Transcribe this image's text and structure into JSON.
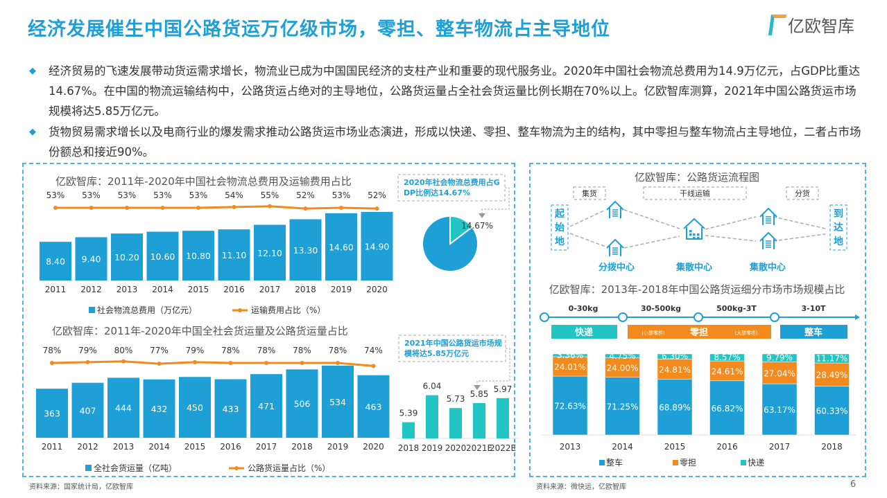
{
  "header": {
    "title": "经济发展催生中国公路货运万亿级市场，零担、整车物流占主导地位",
    "logo": "亿欧智库"
  },
  "bullets": [
    "经济贸易的飞速发展带动货运需求增长，物流业已成为中国国民经济的支柱产业和重要的现代服务业。2020年中国社会物流总费用为14.9万亿元，占GDP比重达14.67%。在中国的物流运输结构中，公路货运占绝对的主导地位，公路货运量占全社会货运量比例长期在70%以上。亿欧智库测算，2021年中国公路货运市场规模将达5.85万亿元。",
    "货物贸易需求增长以及电商行业的爆发需求推动公路货运市场业态演进，形成以快递、零担、整车物流为主的结构，其中零担与整车物流占主导地位，二者占市场份额总和接近90%。"
  ],
  "colors": {
    "blue": "#1e9fd6",
    "orange": "#f28a1e",
    "teal": "#22c4c4",
    "bar_blue": "#1e9fd6"
  },
  "chart_data": [
    {
      "type": "bar",
      "title": "亿欧智库：2011年-2020年中国社会物流总费用及运输费用占比",
      "categories": [
        "2011",
        "2012",
        "2013",
        "2014",
        "2015",
        "2016",
        "2017",
        "2018",
        "2019",
        "2020"
      ],
      "series": [
        {
          "name": "社会物流总费用（万亿元）",
          "type": "bar",
          "values": [
            8.4,
            9.4,
            10.2,
            10.6,
            10.8,
            11.1,
            12.1,
            13.3,
            14.6,
            14.9
          ],
          "labels": [
            "8.40",
            "9.40",
            "10.20",
            "10.60",
            "10.80",
            "11.10",
            "12.10",
            "13.30",
            "14.60",
            "14.90"
          ]
        },
        {
          "name": "运输费用占比（%）",
          "type": "line",
          "values": [
            53,
            53,
            53,
            53,
            53,
            54,
            55,
            52,
            53,
            52
          ],
          "labels": [
            "53%",
            "53%",
            "53%",
            "53%",
            "53%",
            "54%",
            "55%",
            "52%",
            "53%",
            "52%"
          ]
        }
      ],
      "legend": "bottom"
    },
    {
      "type": "pie",
      "callout": "2020年社会物流总费用占GDP比例达14.67%",
      "slices": [
        {
          "label": "14.67%",
          "value": 14.67
        },
        {
          "label": "",
          "value": 85.33
        }
      ]
    },
    {
      "type": "bar",
      "title": "亿欧智库：2011年-2020年中国全社会货运量及公路货运量占比",
      "categories": [
        "2011",
        "2012",
        "2013",
        "2014",
        "2015",
        "2016",
        "2017",
        "2018",
        "2019",
        "2020"
      ],
      "series": [
        {
          "name": "全社会货运量（亿吨）",
          "type": "bar",
          "values": [
            363,
            407,
            444,
            432,
            450,
            433,
            471,
            506,
            534,
            463
          ],
          "labels": [
            "363",
            "407",
            "444",
            "432",
            "450",
            "433",
            "471",
            "506",
            "534",
            "463"
          ]
        },
        {
          "name": "公路货运量占比（%）",
          "type": "line",
          "values": [
            78,
            79,
            80,
            77,
            79,
            78,
            78,
            78,
            78,
            74
          ],
          "labels": [
            "78%",
            "79%",
            "80%",
            "77%",
            "79%",
            "78%",
            "78%",
            "78%",
            "78%",
            "74%"
          ]
        }
      ],
      "legend": "bottom"
    },
    {
      "type": "bar",
      "callout": "2021年中国公路货运市场规模将达5.85万亿元",
      "categories": [
        "2018",
        "2019",
        "2020",
        "2021E",
        "2022E"
      ],
      "values": [
        5.39,
        6.04,
        5.73,
        5.85,
        5.97
      ],
      "labels": [
        "5.39",
        "6.04",
        "5.73",
        "5.85",
        "5.97"
      ]
    },
    {
      "type": "bar",
      "stacked": true,
      "title": "亿欧智库：2013年-2018年中国公路货运细分市场市场规模占比",
      "categories": [
        "2013",
        "2014",
        "2015",
        "2016",
        "2017",
        "2018"
      ],
      "series": [
        {
          "name": "整车",
          "values": [
            72.63,
            71.25,
            68.89,
            66.82,
            63.17,
            60.33
          ],
          "labels": [
            "72.63%",
            "71.25%",
            "68.89%",
            "66.82%",
            "63.17%",
            "60.33%"
          ]
        },
        {
          "name": "零担",
          "values": [
            24.01,
            24.0,
            24.81,
            24.61,
            27.04,
            28.49
          ],
          "labels": [
            "24.01%",
            "24.00%",
            "24.81%",
            "24.61%",
            "27.04%",
            "28.49%"
          ]
        },
        {
          "name": "快递",
          "values": [
            3.36,
            4.75,
            6.3,
            8.57,
            9.79,
            11.17
          ],
          "labels": [
            "3.36%",
            "4.75%",
            "6.30%",
            "8.57%",
            "9.79%",
            "11.17%"
          ]
        }
      ],
      "legend": "bottom",
      "segments": {
        "ranges": [
          "0-30kg",
          "30-500kg",
          "500kg-3T",
          "3-10T"
        ],
        "kuaidi": "快递",
        "lingdan": "零担",
        "small": "(小票零担)",
        "large": "(大票零担)",
        "zhengche": "整车"
      }
    }
  ],
  "flow": {
    "title": "亿欧智库：公路货运流程图",
    "collect": "集货",
    "trunk": "干线运输",
    "distribute": "分货",
    "origin": "起始地",
    "dest": "到达地",
    "hub1": "分拨中心",
    "hub2": "集散中心",
    "hub3": "集散中心"
  },
  "footer": {
    "left_source": "资料来源：国家统计局，亿欧智库",
    "right_source": "资料来源：微快运，亿欧智库",
    "page": "6"
  }
}
